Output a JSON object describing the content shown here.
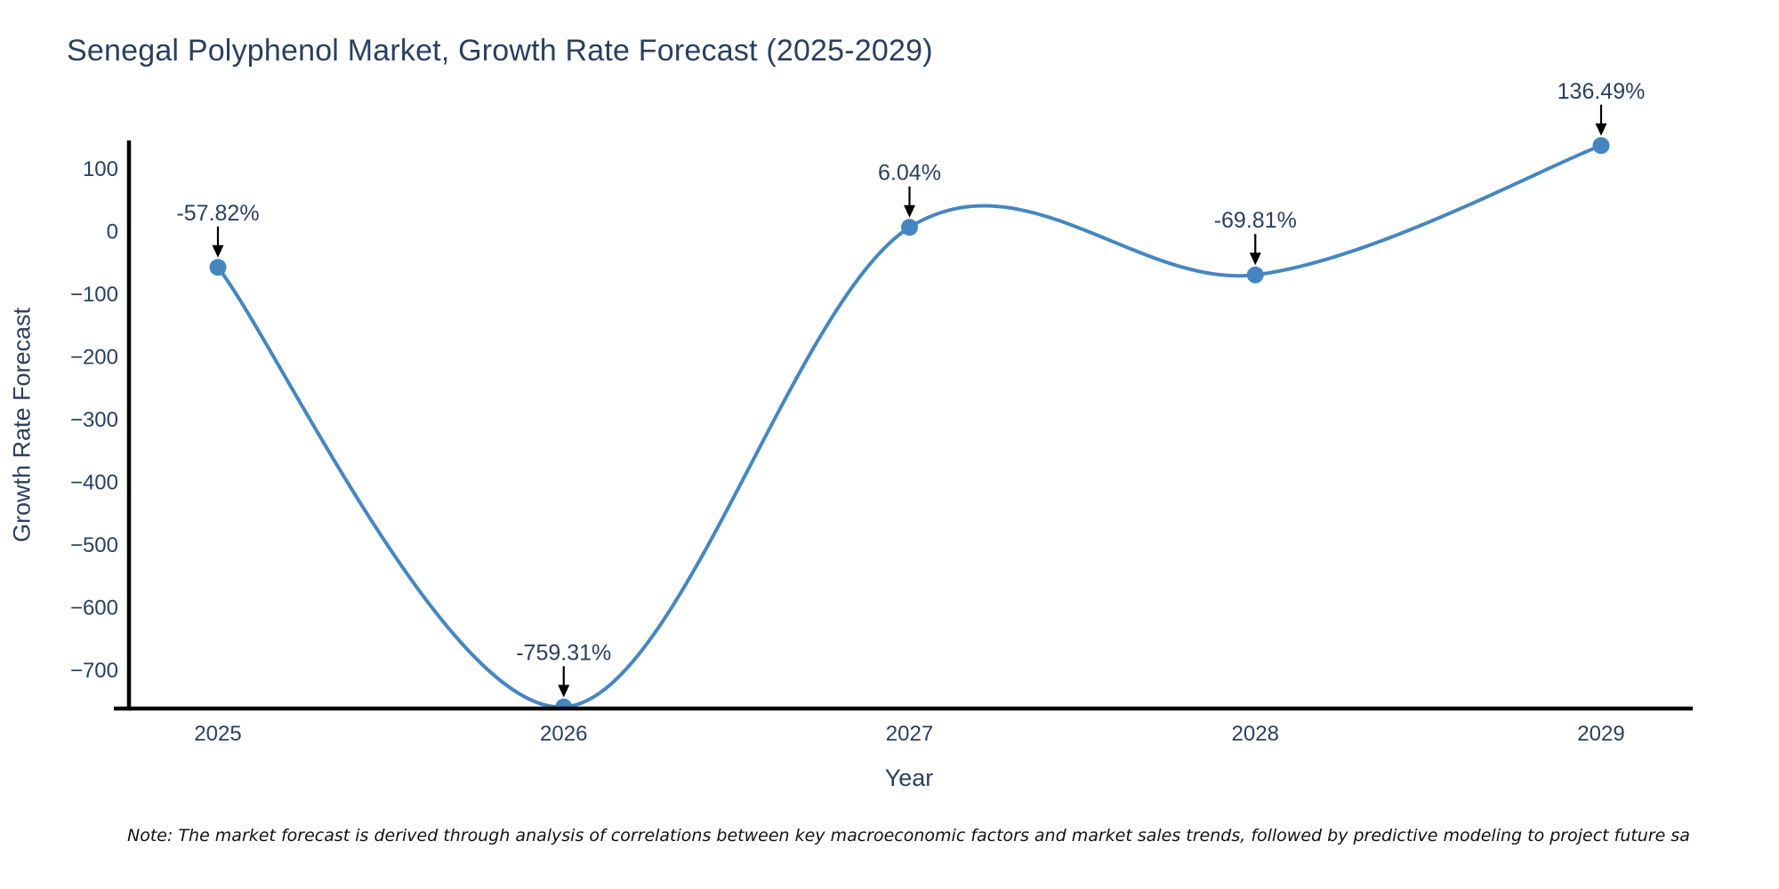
{
  "chart_data": {
    "type": "line",
    "title": "Senegal Polyphenol Market, Growth Rate Forecast (2025-2029)",
    "xlabel": "Year",
    "ylabel": "Growth Rate Forecast",
    "categories": [
      "2025",
      "2026",
      "2027",
      "2028",
      "2029"
    ],
    "series": [
      {
        "name": "Growth Rate Forecast",
        "values": [
          -57.82,
          -759.31,
          6.04,
          -69.81,
          136.49
        ]
      }
    ],
    "point_labels": [
      "-57.82%",
      "-759.31%",
      "6.04%",
      "-69.81%",
      "136.49%"
    ],
    "yticks": [
      100,
      0,
      -100,
      -200,
      -300,
      -400,
      -500,
      -600,
      -700
    ],
    "ylim": [
      -762,
      142
    ],
    "line_shape": "spline",
    "grid": false,
    "legend": "none",
    "annotation_style": "arrow-down-to-point",
    "colors": {
      "line": "#4586c0",
      "marker": "#4586c0",
      "axis_line": "#000000",
      "text": "#2a3f5f",
      "arrow": "#000000",
      "background": "#ffffff"
    }
  },
  "note": "Note: The market forecast is derived through analysis of correlations between key macroeconomic factors and market sales trends, followed by predictive modeling to project future sa"
}
